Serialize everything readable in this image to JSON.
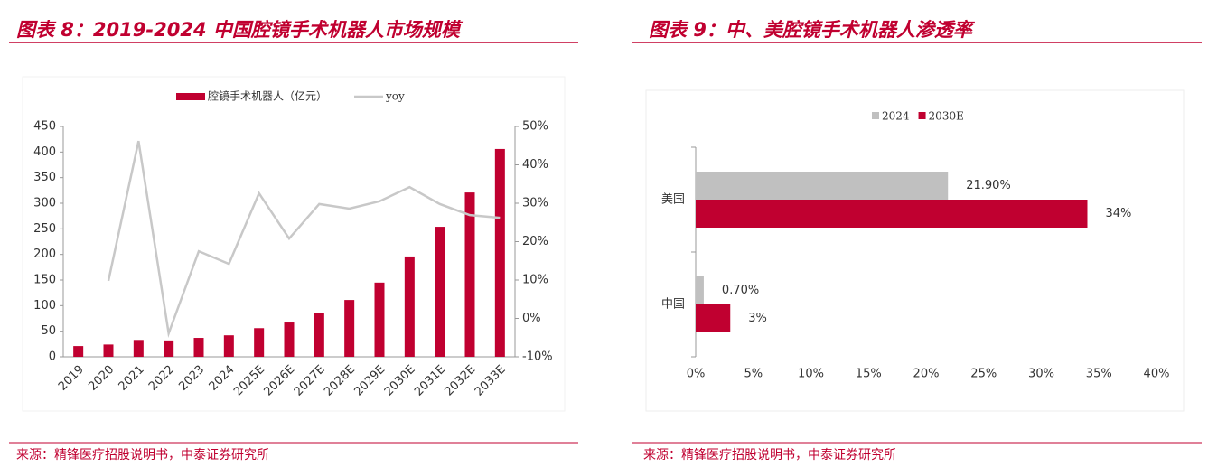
{
  "chart_data": [
    {
      "type": "bar",
      "title": "图表 8：2019-2024 中国腔镜手术机器人市场规模",
      "source": "来源：精锋医疗招股说明书，中泰证券研究所",
      "categories": [
        "2019",
        "2020",
        "2021",
        "2022",
        "2023",
        "2024",
        "2025E",
        "2026E",
        "2027E",
        "2028E",
        "2029E",
        "2030E",
        "2031E",
        "2032E",
        "2033E"
      ],
      "series": [
        {
          "name": "腔镜手术机器人（亿元）",
          "color": "#c00030",
          "values": [
            21,
            24,
            33,
            32,
            37,
            42,
            56,
            67,
            86,
            111,
            145,
            196,
            254,
            321,
            406
          ]
        },
        {
          "name": "yoy",
          "color": "#c8c8c8",
          "axis": "y2",
          "type": "line",
          "values": [
            null,
            9.8,
            46.2,
            -3.9,
            17.5,
            14.2,
            32.6,
            20.8,
            29.8,
            28.6,
            30.5,
            34.2,
            29.8,
            26.9,
            26.2
          ]
        }
      ],
      "ylim": [
        0,
        450
      ],
      "yticks": [
        0,
        50,
        100,
        150,
        200,
        250,
        300,
        350,
        400,
        450
      ],
      "y2lim": [
        -10,
        50
      ],
      "y2ticks": [
        {
          "value": -10,
          "label": "-10%"
        },
        {
          "value": 0,
          "label": "0%"
        },
        {
          "value": 10,
          "label": "10%"
        },
        {
          "value": 20,
          "label": "20%"
        },
        {
          "value": 30,
          "label": "30%"
        },
        {
          "value": 40,
          "label": "40%"
        },
        {
          "value": 50,
          "label": "50%"
        }
      ],
      "legend": "top"
    },
    {
      "type": "barh",
      "title": "图表 9：中、美腔镜手术机器人渗透率",
      "source": "来源：精锋医疗招股说明书，中泰证券研究所",
      "categories": [
        "美国",
        "中国"
      ],
      "series": [
        {
          "name": "2024",
          "color": "#c0c0c0",
          "values": [
            21.9,
            0.7
          ],
          "value_labels": [
            "21.90%",
            "0.70%"
          ]
        },
        {
          "name": "2030E",
          "color": "#c00030",
          "values": [
            34,
            3
          ],
          "value_labels": [
            "34%",
            "3%"
          ]
        }
      ],
      "xlim": [
        0,
        40
      ],
      "xticks": [
        {
          "value": 0,
          "label": "0%"
        },
        {
          "value": 5,
          "label": "5%"
        },
        {
          "value": 10,
          "label": "10%"
        },
        {
          "value": 15,
          "label": "15%"
        },
        {
          "value": 20,
          "label": "20%"
        },
        {
          "value": 25,
          "label": "25%"
        },
        {
          "value": 30,
          "label": "30%"
        },
        {
          "value": 35,
          "label": "35%"
        },
        {
          "value": 40,
          "label": "40%"
        }
      ],
      "legend": "top"
    }
  ]
}
